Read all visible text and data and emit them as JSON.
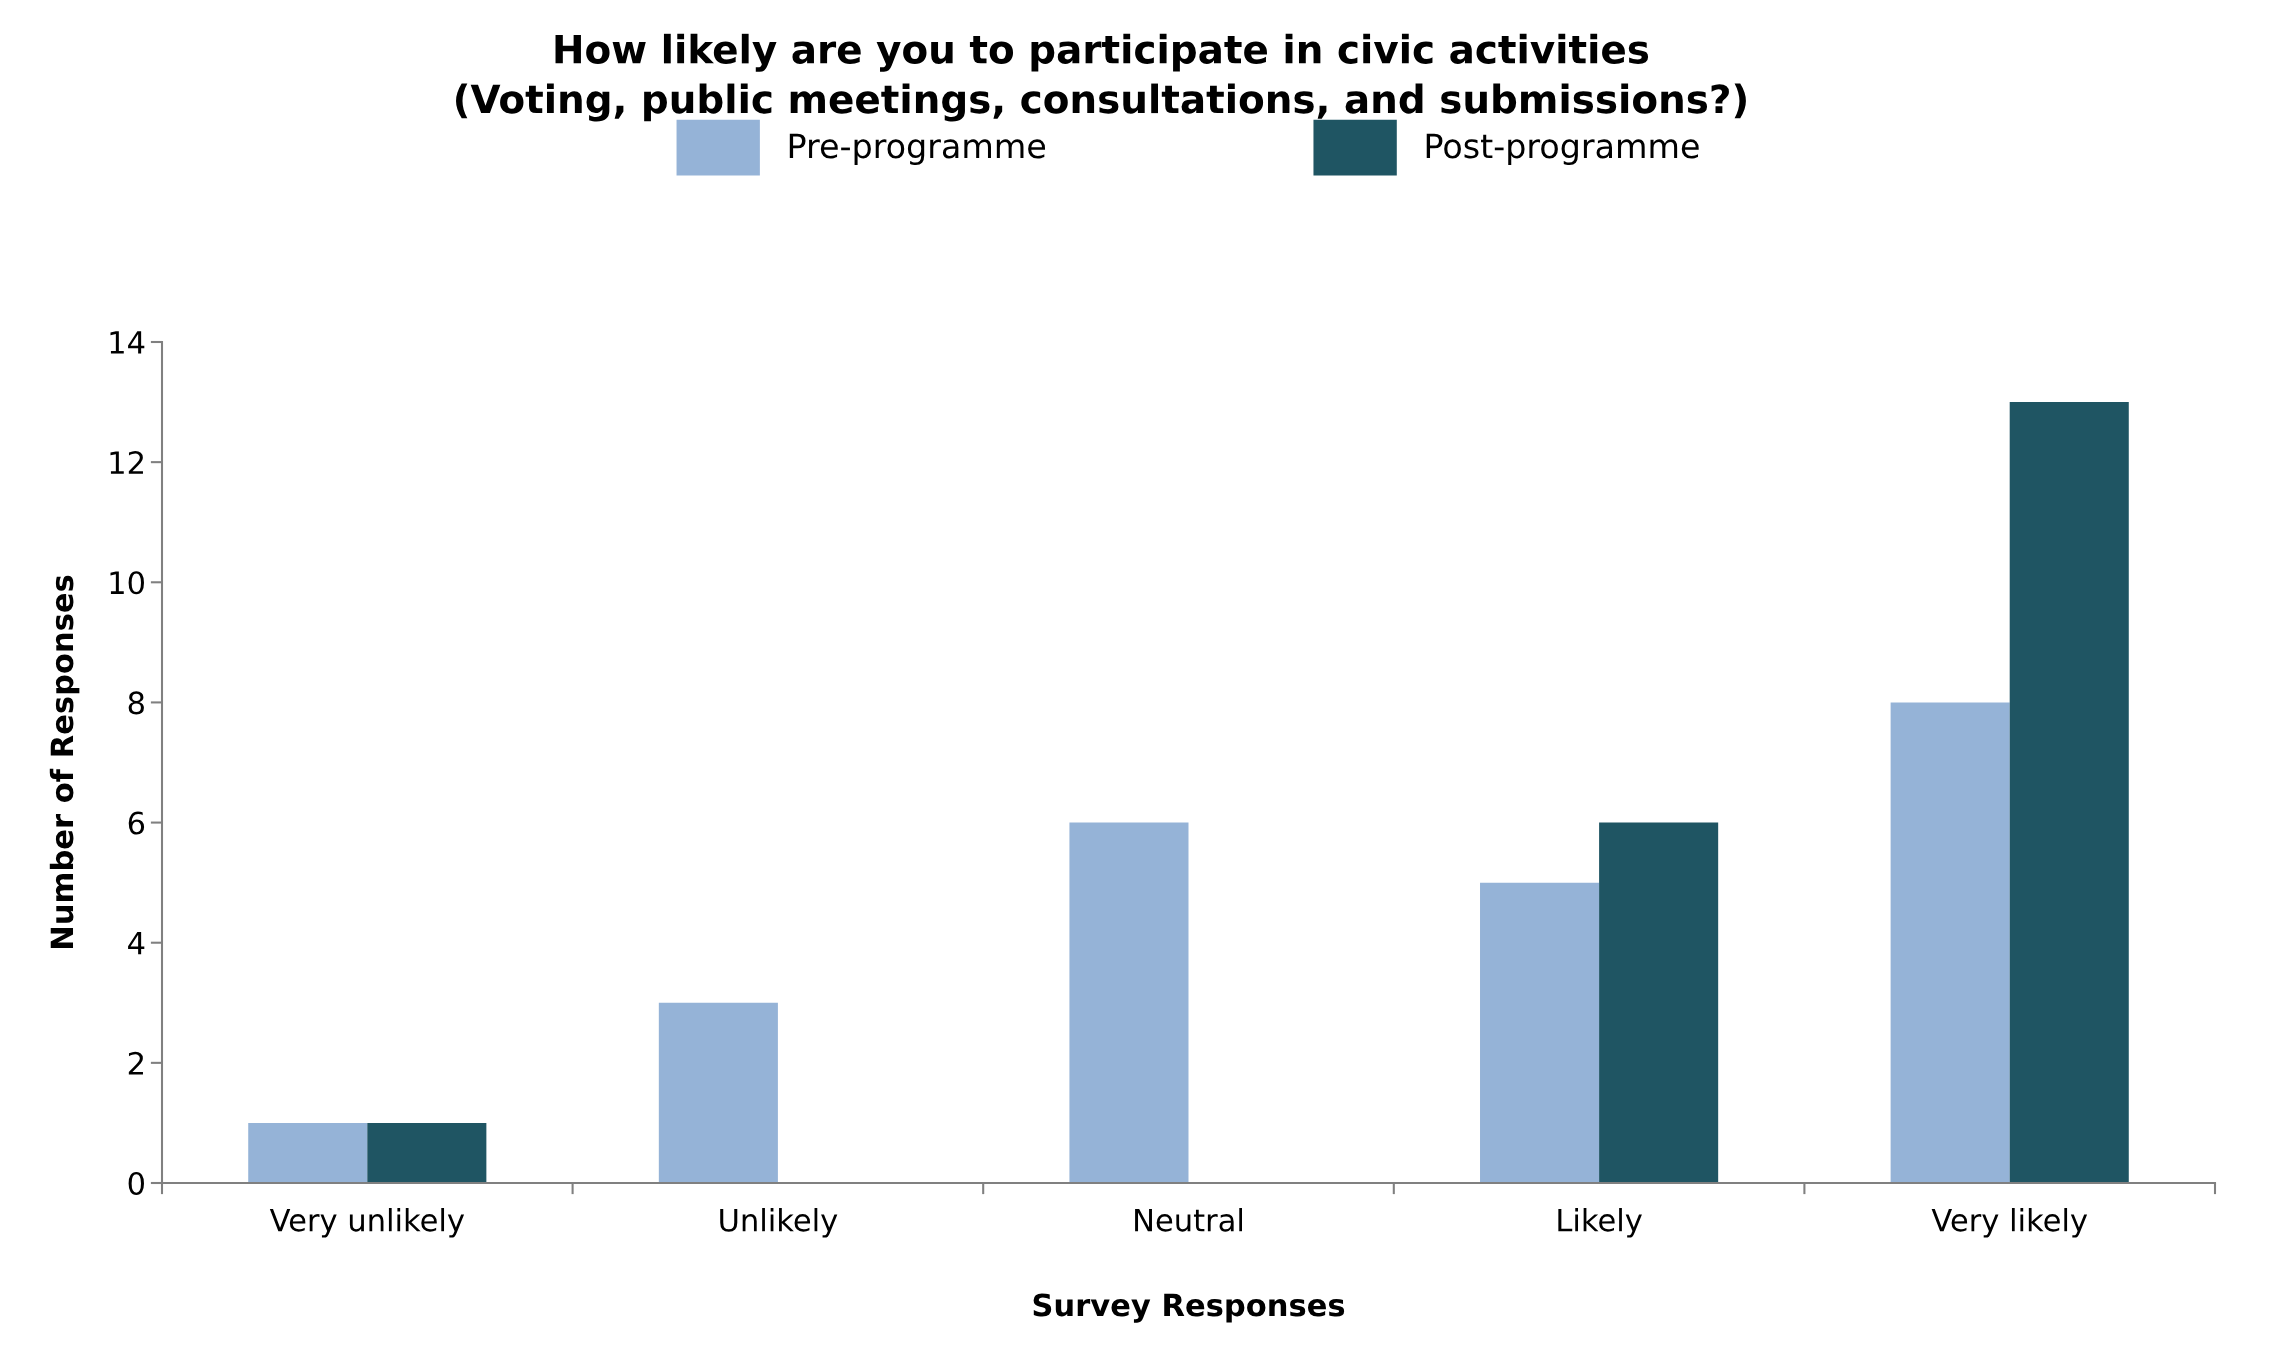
{
  "chart_data": {
    "type": "bar",
    "title": "How likely are you to participate in civic activities\n(Voting, public meetings, consultations, and submissions?)",
    "xlabel": "Survey Responses",
    "ylabel": "Number of Responses",
    "categories": [
      "Very unlikely",
      "Unlikely",
      "Neutral",
      "Likely",
      "Very likely"
    ],
    "series": [
      {
        "name": "Pre-programme",
        "color": "#95b3d7",
        "values": [
          1,
          3,
          6,
          5,
          8
        ]
      },
      {
        "name": "Post-programme",
        "color": "#1f5563",
        "values": [
          1,
          0,
          0,
          6,
          13
        ]
      }
    ],
    "ylim": [
      0,
      14
    ],
    "yticks": [
      0,
      2,
      4,
      6,
      8,
      10,
      12,
      14
    ],
    "grid": false,
    "legend": "top"
  }
}
